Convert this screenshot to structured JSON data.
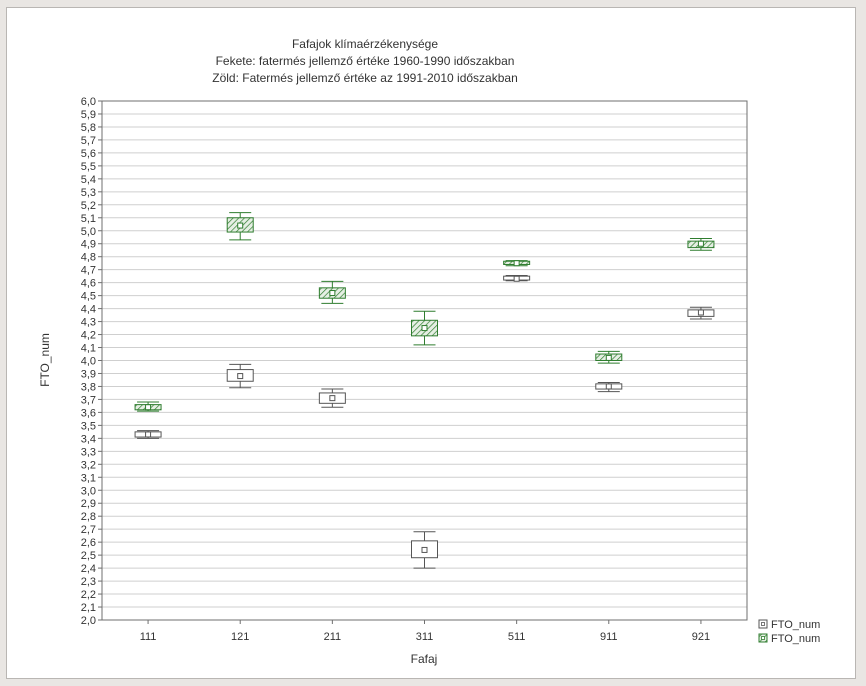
{
  "chart_data": {
    "type": "box",
    "title": [
      "Fafajok klímaérzékenysége",
      "Fekete: fatermés jellemző értéke 1960-1990 időszakban",
      "Zöld: Fatermés jellemző értéke az 1991-2010 időszakban"
    ],
    "xlabel": "Fafaj",
    "ylabel": "FTO_num",
    "ylim": [
      2.0,
      6.0
    ],
    "ytick_step": 0.1,
    "yticks": [
      "2,0",
      "2,1",
      "2,2",
      "2,3",
      "2,4",
      "2,5",
      "2,6",
      "2,7",
      "2,8",
      "2,9",
      "3,0",
      "3,1",
      "3,2",
      "3,3",
      "3,4",
      "3,5",
      "3,6",
      "3,7",
      "3,8",
      "3,9",
      "4,0",
      "4,1",
      "4,2",
      "4,3",
      "4,4",
      "4,5",
      "4,6",
      "4,7",
      "4,8",
      "4,9",
      "5,0",
      "5,1",
      "5,2",
      "5,3",
      "5,4",
      "5,5",
      "5,6",
      "5,7",
      "5,8",
      "5,9",
      "6,0"
    ],
    "categories": [
      "111",
      "121",
      "211",
      "311",
      "511",
      "911",
      "921"
    ],
    "grid": true,
    "legend_position": "bottom-right",
    "series": [
      {
        "name": "FTO_num",
        "color": "#555555",
        "fill": "none",
        "boxes": [
          {
            "mean": 3.43,
            "box_low": 3.41,
            "box_high": 3.45,
            "whisker_low": 3.4,
            "whisker_high": 3.46
          },
          {
            "mean": 3.88,
            "box_low": 3.84,
            "box_high": 3.93,
            "whisker_low": 3.79,
            "whisker_high": 3.97
          },
          {
            "mean": 3.71,
            "box_low": 3.67,
            "box_high": 3.75,
            "whisker_low": 3.64,
            "whisker_high": 3.78
          },
          {
            "mean": 2.54,
            "box_low": 2.48,
            "box_high": 2.61,
            "whisker_low": 2.4,
            "whisker_high": 2.68
          },
          {
            "mean": 4.63,
            "box_low": 4.62,
            "box_high": 4.65,
            "whisker_low": 4.615,
            "whisker_high": 4.655
          },
          {
            "mean": 3.8,
            "box_low": 3.78,
            "box_high": 3.82,
            "whisker_low": 3.76,
            "whisker_high": 3.83
          },
          {
            "mean": 4.37,
            "box_low": 4.34,
            "box_high": 4.39,
            "whisker_low": 4.32,
            "whisker_high": 4.41
          }
        ]
      },
      {
        "name": "FTO_num",
        "color": "#2f7d2f",
        "fill": "hatched",
        "boxes": [
          {
            "mean": 3.64,
            "box_low": 3.62,
            "box_high": 3.66,
            "whisker_low": 3.61,
            "whisker_high": 3.68
          },
          {
            "mean": 5.04,
            "box_low": 4.99,
            "box_high": 5.1,
            "whisker_low": 4.93,
            "whisker_high": 5.14
          },
          {
            "mean": 4.52,
            "box_low": 4.48,
            "box_high": 4.56,
            "whisker_low": 4.44,
            "whisker_high": 4.61
          },
          {
            "mean": 4.25,
            "box_low": 4.19,
            "box_high": 4.31,
            "whisker_low": 4.12,
            "whisker_high": 4.38
          },
          {
            "mean": 4.75,
            "box_low": 4.74,
            "box_high": 4.765,
            "whisker_low": 4.73,
            "whisker_high": 4.77
          },
          {
            "mean": 4.02,
            "box_low": 4.0,
            "box_high": 4.05,
            "whisker_low": 3.98,
            "whisker_high": 4.07
          },
          {
            "mean": 4.9,
            "box_low": 4.87,
            "box_high": 4.92,
            "whisker_low": 4.85,
            "whisker_high": 4.94
          }
        ]
      }
    ]
  }
}
